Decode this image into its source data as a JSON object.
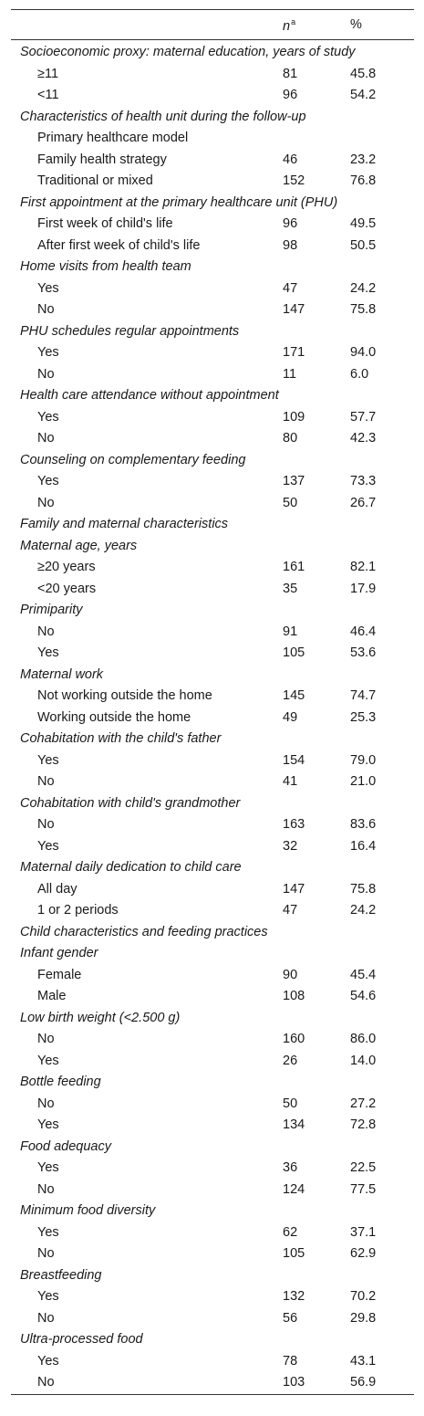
{
  "header": {
    "n_label": "n",
    "n_sup": "a",
    "pct_label": "%"
  },
  "rows": [
    {
      "type": "sec",
      "label": "Socioeconomic proxy: maternal education, years of study",
      "n": "",
      "pct": ""
    },
    {
      "type": "item",
      "label": "≥11",
      "n": "81",
      "pct": "45.8"
    },
    {
      "type": "item",
      "label": "<11",
      "n": "96",
      "pct": "54.2"
    },
    {
      "type": "sec",
      "label": "Characteristics of health unit during the follow-up",
      "n": "",
      "pct": ""
    },
    {
      "type": "item",
      "label": "Primary healthcare model",
      "n": "",
      "pct": ""
    },
    {
      "type": "item",
      "label": "Family health strategy",
      "n": "46",
      "pct": "23.2"
    },
    {
      "type": "item",
      "label": "Traditional or mixed",
      "n": "152",
      "pct": "76.8"
    },
    {
      "type": "sec",
      "label": "First appointment at the primary healthcare unit (PHU)",
      "n": "",
      "pct": ""
    },
    {
      "type": "item",
      "label": "First week of child's life",
      "n": "96",
      "pct": "49.5"
    },
    {
      "type": "item",
      "label": "After first week of child's life",
      "n": "98",
      "pct": "50.5"
    },
    {
      "type": "sec",
      "label": "Home visits from health team",
      "n": "",
      "pct": ""
    },
    {
      "type": "item",
      "label": "Yes",
      "n": "47",
      "pct": "24.2"
    },
    {
      "type": "item",
      "label": "No",
      "n": "147",
      "pct": "75.8"
    },
    {
      "type": "sec",
      "label": "PHU schedules regular appointments",
      "n": "",
      "pct": ""
    },
    {
      "type": "item",
      "label": "Yes",
      "n": "171",
      "pct": "94.0"
    },
    {
      "type": "item",
      "label": "No",
      "n": "11",
      "pct": "6.0"
    },
    {
      "type": "sec",
      "label": "Health care attendance without appointment",
      "n": "",
      "pct": ""
    },
    {
      "type": "item",
      "label": "Yes",
      "n": "109",
      "pct": "57.7"
    },
    {
      "type": "item",
      "label": "No",
      "n": "80",
      "pct": "42.3"
    },
    {
      "type": "sec",
      "label": "Counseling on complementary feeding",
      "n": "",
      "pct": ""
    },
    {
      "type": "item",
      "label": "Yes",
      "n": "137",
      "pct": "73.3"
    },
    {
      "type": "item",
      "label": "No",
      "n": "50",
      "pct": "26.7"
    },
    {
      "type": "sec",
      "label": "Family and maternal characteristics",
      "n": "",
      "pct": ""
    },
    {
      "type": "sec",
      "label": "Maternal age, years",
      "n": "",
      "pct": ""
    },
    {
      "type": "item",
      "label": "≥20 years",
      "n": "161",
      "pct": "82.1"
    },
    {
      "type": "item",
      "label": "<20 years",
      "n": "35",
      "pct": "17.9"
    },
    {
      "type": "sec",
      "label": "Primiparity",
      "n": "",
      "pct": ""
    },
    {
      "type": "item",
      "label": "No",
      "n": "91",
      "pct": "46.4"
    },
    {
      "type": "item",
      "label": "Yes",
      "n": "105",
      "pct": "53.6"
    },
    {
      "type": "sec",
      "label": "Maternal work",
      "n": "",
      "pct": ""
    },
    {
      "type": "item",
      "label": "Not working outside the home",
      "n": "145",
      "pct": "74.7"
    },
    {
      "type": "item",
      "label": "Working outside the home",
      "n": "49",
      "pct": "25.3"
    },
    {
      "type": "sec",
      "label": "Cohabitation with the child's father",
      "n": "",
      "pct": ""
    },
    {
      "type": "item",
      "label": "Yes",
      "n": "154",
      "pct": "79.0"
    },
    {
      "type": "item",
      "label": "No",
      "n": "41",
      "pct": "21.0"
    },
    {
      "type": "sec",
      "label": "Cohabitation with child's grandmother",
      "n": "",
      "pct": ""
    },
    {
      "type": "item",
      "label": "No",
      "n": "163",
      "pct": "83.6"
    },
    {
      "type": "item",
      "label": "Yes",
      "n": "32",
      "pct": "16.4"
    },
    {
      "type": "sec",
      "label": "Maternal daily dedication to child care",
      "n": "",
      "pct": ""
    },
    {
      "type": "item",
      "label": "All day",
      "n": "147",
      "pct": "75.8"
    },
    {
      "type": "item",
      "label": "1 or 2 periods",
      "n": "47",
      "pct": "24.2"
    },
    {
      "type": "sec",
      "label": "Child characteristics and feeding practices",
      "n": "",
      "pct": ""
    },
    {
      "type": "sec",
      "label": "Infant gender",
      "n": "",
      "pct": ""
    },
    {
      "type": "item",
      "label": "Female",
      "n": "90",
      "pct": "45.4"
    },
    {
      "type": "item",
      "label": "Male",
      "n": "108",
      "pct": "54.6"
    },
    {
      "type": "sec",
      "label": "Low birth weight (<2.500 g)",
      "n": "",
      "pct": ""
    },
    {
      "type": "item",
      "label": "No",
      "n": "160",
      "pct": "86.0"
    },
    {
      "type": "item",
      "label": "Yes",
      "n": "26",
      "pct": "14.0"
    },
    {
      "type": "sec",
      "label": "Bottle feeding",
      "n": "",
      "pct": ""
    },
    {
      "type": "item",
      "label": "No",
      "n": "50",
      "pct": "27.2"
    },
    {
      "type": "item",
      "label": "Yes",
      "n": "134",
      "pct": "72.8"
    },
    {
      "type": "sec",
      "label": "Food adequacy",
      "n": "",
      "pct": ""
    },
    {
      "type": "item",
      "label": "Yes",
      "n": "36",
      "pct": "22.5"
    },
    {
      "type": "item",
      "label": "No",
      "n": "124",
      "pct": "77.5"
    },
    {
      "type": "sec",
      "label": "Minimum food diversity",
      "n": "",
      "pct": ""
    },
    {
      "type": "item",
      "label": "Yes",
      "n": "62",
      "pct": "37.1"
    },
    {
      "type": "item",
      "label": "No",
      "n": "105",
      "pct": "62.9"
    },
    {
      "type": "sec",
      "label": "Breastfeeding",
      "n": "",
      "pct": ""
    },
    {
      "type": "item",
      "label": "Yes",
      "n": "132",
      "pct": "70.2"
    },
    {
      "type": "item",
      "label": "No",
      "n": "56",
      "pct": "29.8"
    },
    {
      "type": "sec",
      "label": "Ultra-processed food",
      "n": "",
      "pct": ""
    },
    {
      "type": "item",
      "label": "Yes",
      "n": "78",
      "pct": "43.1"
    },
    {
      "type": "item",
      "label": "No",
      "n": "103",
      "pct": "56.9"
    }
  ]
}
